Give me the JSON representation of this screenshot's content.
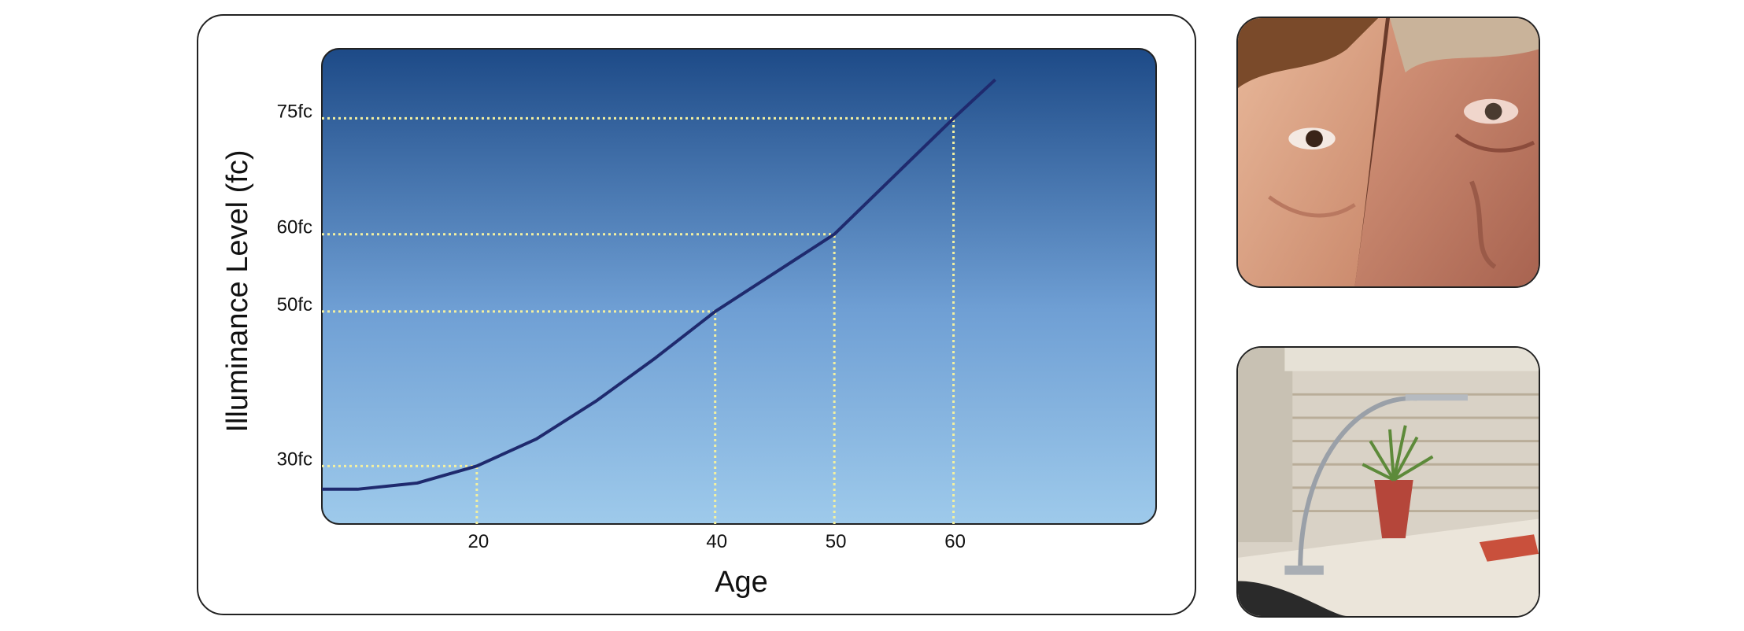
{
  "chart_data": {
    "type": "line",
    "xlabel": "Age",
    "ylabel": "Illuminance Level (fc)",
    "x_ticks": [
      {
        "value": 20,
        "label": "20"
      },
      {
        "value": 40,
        "label": "40"
      },
      {
        "value": 50,
        "label": "50"
      },
      {
        "value": 60,
        "label": "60"
      }
    ],
    "y_ticks": [
      {
        "value": 30,
        "label": "30fc"
      },
      {
        "value": 50,
        "label": "50fc"
      },
      {
        "value": 60,
        "label": "60fc"
      },
      {
        "value": 75,
        "label": "75fc"
      }
    ],
    "series": [
      {
        "x": [
          7,
          10,
          15,
          20,
          25,
          30,
          35,
          40,
          45,
          50,
          55,
          60,
          63.5
        ],
        "y": [
          27,
          27,
          27.8,
          30,
          33.5,
          38.4,
          44,
          50,
          55,
          60,
          67.5,
          75,
          80
        ]
      }
    ],
    "xlim": [
      7,
      77
    ],
    "ylim": [
      22.5,
      84
    ],
    "grid": false,
    "guide_lines": "dotted from each labeled age up to the curve and across to its illuminance level",
    "colors": {
      "line": "#1f2a6e",
      "guides": "#f3f0a0",
      "gradient_top": "#1d4a87",
      "gradient_bottom": "#9ecaeb",
      "border": "#222222"
    }
  },
  "photos": [
    {
      "name": "faces-photo",
      "subject": "child and elderly man faces"
    },
    {
      "name": "desk-lamp-photo",
      "subject": "desk lamp with potted plant in office cubicle"
    }
  ]
}
